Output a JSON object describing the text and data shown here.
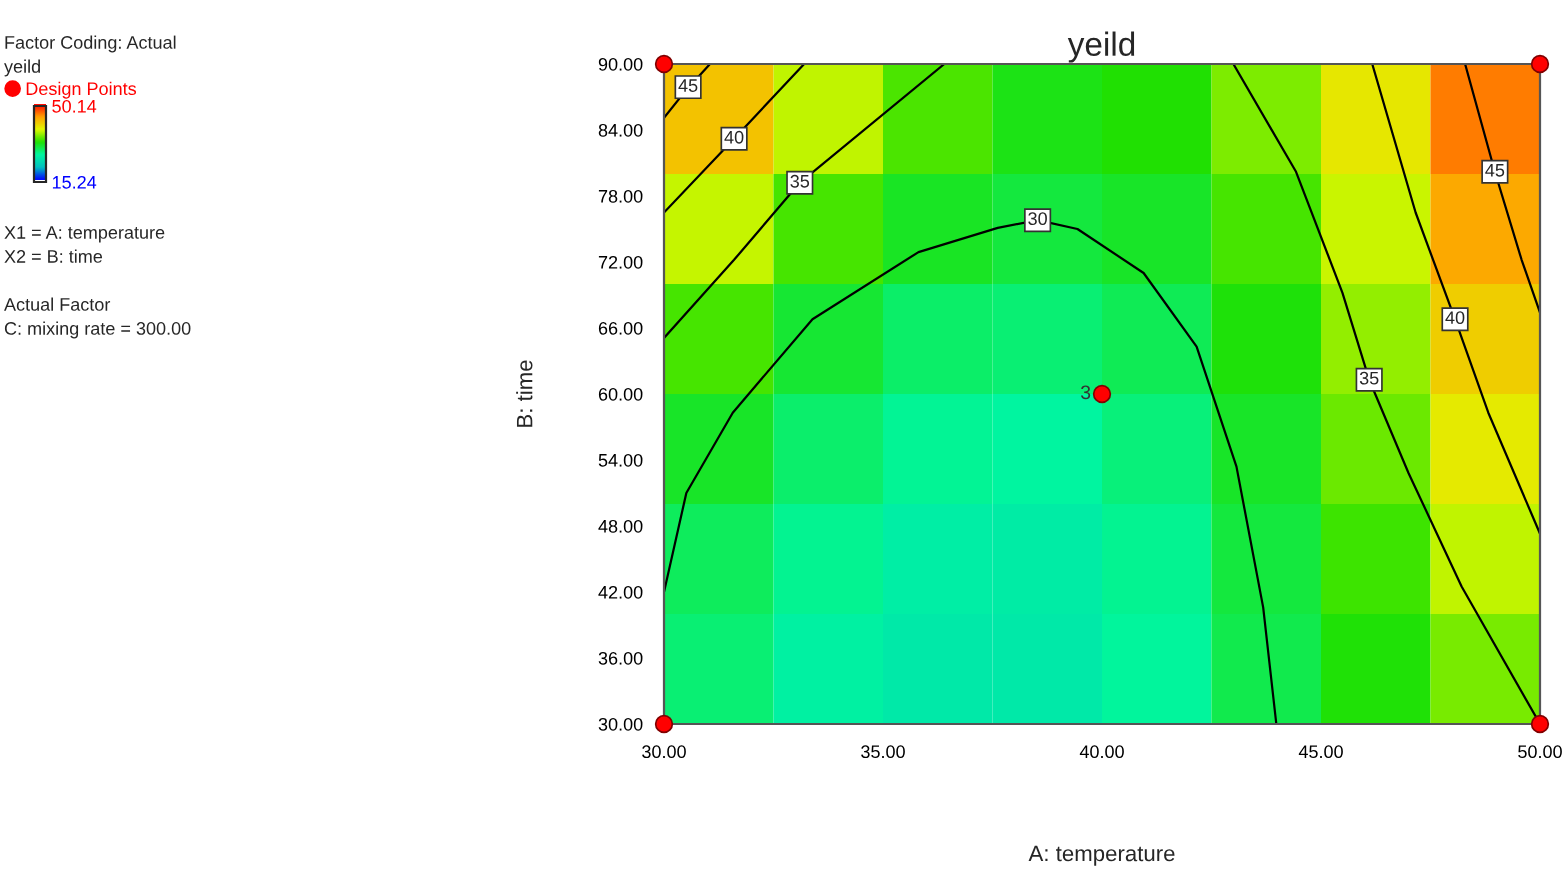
{
  "chart_data": {
    "type": "heatmap",
    "title": "yeild",
    "xlabel": "A: temperature",
    "ylabel": "B: time",
    "clabel": "yeild",
    "x": [
      31.25,
      33.75,
      36.25,
      38.75,
      41.25,
      43.75,
      46.25,
      48.75
    ],
    "y": [
      85,
      75,
      65,
      55,
      45,
      35
    ],
    "cells": [
      [
        42,
        37.5,
        34,
        32,
        32.6,
        35.5,
        39.6,
        45.6
      ],
      [
        37.6,
        33.9,
        31.4,
        30.4,
        31.3,
        33.9,
        37.8,
        43.6
      ],
      [
        33.9,
        30.8,
        29,
        28.5,
        29.6,
        32.4,
        36.1,
        41.4
      ],
      [
        31.3,
        28.8,
        27.3,
        26.9,
        28.3,
        31.3,
        34.9,
        39.4
      ],
      [
        29.4,
        27.4,
        26.1,
        26,
        27.5,
        30.4,
        33.6,
        37.5
      ],
      [
        28.5,
        26.5,
        25.5,
        25.5,
        27.1,
        29.9,
        32.5,
        35.3
      ]
    ],
    "colors": [
      "#0000ff",
      "#00c0c0",
      "#00f5a0",
      "#20e000",
      "#e0f800",
      "#ffa000",
      "#ff0000"
    ],
    "clim": [
      15.24,
      50.14
    ],
    "cticks": [
      50.14,
      15.24
    ],
    "series": [
      {
        "type": "scatter",
        "name": "Design Points",
        "color": "#ff0000",
        "x": [
          30,
          50,
          30,
          50,
          40
        ],
        "values": [
          90,
          90,
          30,
          30,
          60
        ]
      },
      {
        "type": "line",
        "color": "#000000",
        "x": [
          30,
          30.5,
          31.05
        ],
        "values": [
          85.1,
          87.6,
          90
        ]
      },
      {
        "type": "line",
        "color": "#000000",
        "x": [
          30,
          31.6,
          33.2
        ],
        "values": [
          76.5,
          83.2,
          90
        ]
      },
      {
        "type": "line",
        "color": "#000000",
        "x": [
          30,
          31.6,
          33.1,
          36.4
        ],
        "values": [
          65.1,
          72.2,
          79.2,
          90
        ]
      },
      {
        "type": "line",
        "color": "#000000",
        "x": [
          30,
          30.51,
          31.57,
          33.39,
          35.81,
          37.62,
          38.53,
          39.44,
          40.95,
          42.16,
          43.07,
          43.68,
          43.98
        ],
        "values": [
          42.0,
          51.0,
          58.3,
          66.8,
          72.9,
          75.1,
          75.8,
          75.0,
          71.0,
          64.3,
          53.4,
          40.6,
          30.0
        ]
      },
      {
        "type": "line",
        "color": "#000000",
        "x": [
          43.0,
          44.43,
          45.49,
          46.1,
          47.0,
          48.21,
          50
        ],
        "values": [
          90,
          80.2,
          69.2,
          61.3,
          52.8,
          42.5,
          30
        ]
      },
      {
        "type": "line",
        "color": "#000000",
        "x": [
          46.17,
          47.16,
          48.06,
          48.82,
          50
        ],
        "values": [
          90,
          76.5,
          66.8,
          58.3,
          47.3
        ]
      },
      {
        "type": "line",
        "color": "#000000",
        "x": [
          48.29,
          48.97,
          49.58,
          50
        ],
        "values": [
          90,
          80.2,
          72.2,
          67.4
        ]
      }
    ],
    "xlim": [
      30,
      50
    ],
    "ylim": [
      30,
      90
    ],
    "xticks": [
      {
        "value": 30,
        "label": "30.00"
      },
      {
        "value": 35,
        "label": "35.00"
      },
      {
        "value": 40,
        "label": "40.00"
      },
      {
        "value": 45,
        "label": "45.00"
      },
      {
        "value": 50,
        "label": "50.00"
      }
    ],
    "yticks": [
      {
        "value": 30,
        "label": "30.00"
      },
      {
        "value": 36,
        "label": "36.00"
      },
      {
        "value": 42,
        "label": "42.00"
      },
      {
        "value": 48,
        "label": "48.00"
      },
      {
        "value": 54,
        "label": "54.00"
      },
      {
        "value": 60,
        "label": "60.00"
      },
      {
        "value": 66,
        "label": "66.00"
      },
      {
        "value": 72,
        "label": "72.00"
      },
      {
        "value": 78,
        "label": "78.00"
      },
      {
        "value": 84,
        "label": "84.00"
      },
      {
        "value": 90,
        "label": "90.00"
      }
    ],
    "legend": "left",
    "grid": false,
    "line_style": "solid",
    "annotations": [
      {
        "text": "45",
        "x": 30.55,
        "y": 87.9
      },
      {
        "text": "40",
        "x": 31.6,
        "y": 83.2
      },
      {
        "text": "35",
        "x": 33.1,
        "y": 79.2
      },
      {
        "text": "30",
        "x": 38.53,
        "y": 75.8
      },
      {
        "text": "35",
        "x": 46.1,
        "y": 61.3
      },
      {
        "text": "40",
        "x": 48.06,
        "y": 66.8
      },
      {
        "text": "45",
        "x": 48.97,
        "y": 80.2
      },
      {
        "text": "3",
        "x": 40,
        "y": 60
      },
      "Factor Coding: Actual",
      "X1 = A: temperature",
      "X2 = B: time",
      "Actual Factor",
      "C: mixing rate = 300.00"
    ]
  }
}
